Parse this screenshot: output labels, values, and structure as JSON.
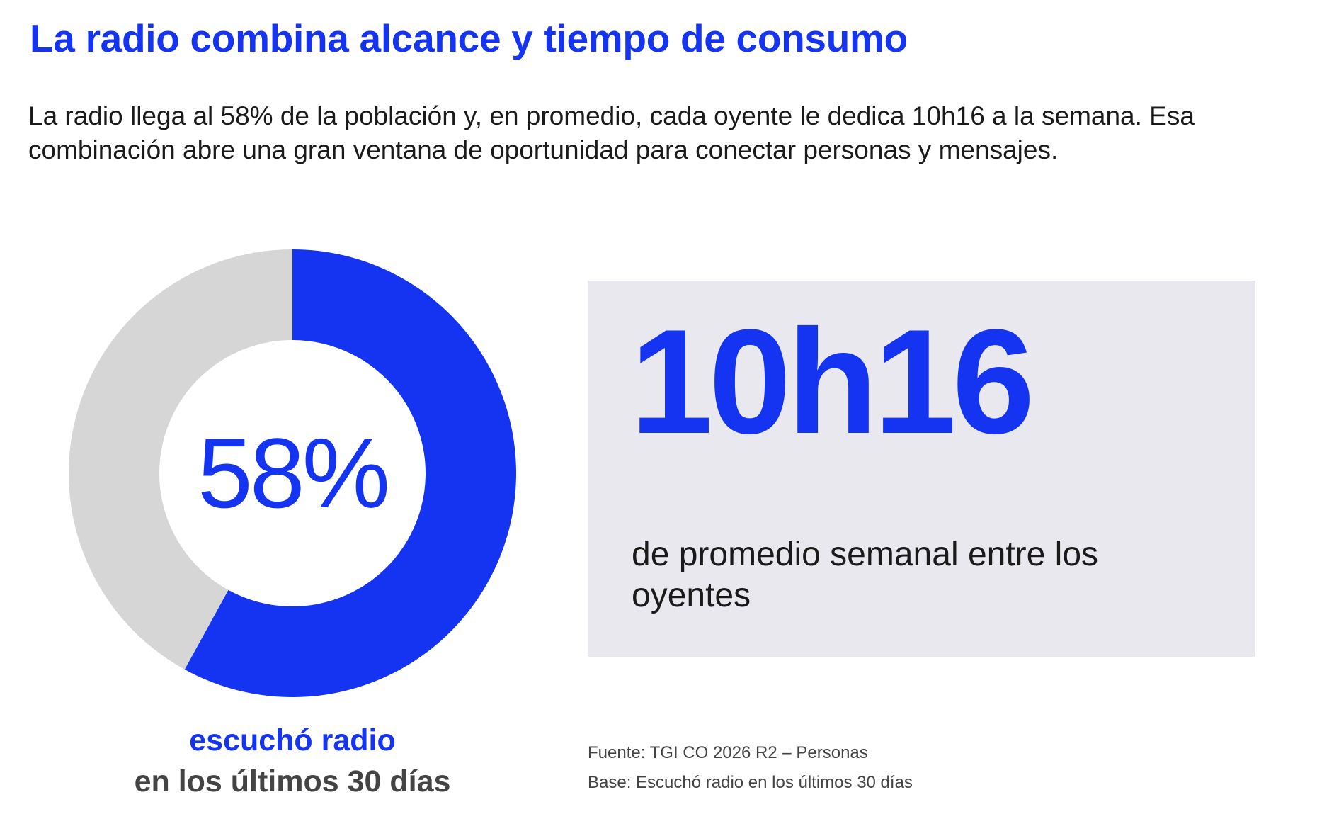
{
  "header": {
    "title": "La radio combina alcance y tiempo de consumo",
    "subtitle": "La radio llega al 58% de la población y, en promedio, cada oyente le dedica 10h16 a la semana. Esa combinación abre una gran ventana de oportunidad para conectar personas y mensajes."
  },
  "donut": {
    "center_label": "58%",
    "caption_line1": "escuchó radio",
    "caption_line2": "en los últimos 30 días"
  },
  "stat": {
    "value": "10h16",
    "description": "de promedio semanal entre los oyentes"
  },
  "footer": {
    "source": "Fuente: TGI CO 2026 R2 – Personas",
    "base": "Base: Escuchó radio en los últimos 30 días"
  },
  "colors": {
    "accent": "#1434f2",
    "remainder": "#d6d6d6",
    "panel": "#e8e8ee"
  },
  "chart_data": {
    "type": "pie",
    "categories": [
      "escuchó radio",
      ""
    ],
    "values": [
      58,
      42
    ],
    "colors": [
      "#1434f2",
      "#d6d6d6"
    ],
    "center_label": "58%"
  }
}
